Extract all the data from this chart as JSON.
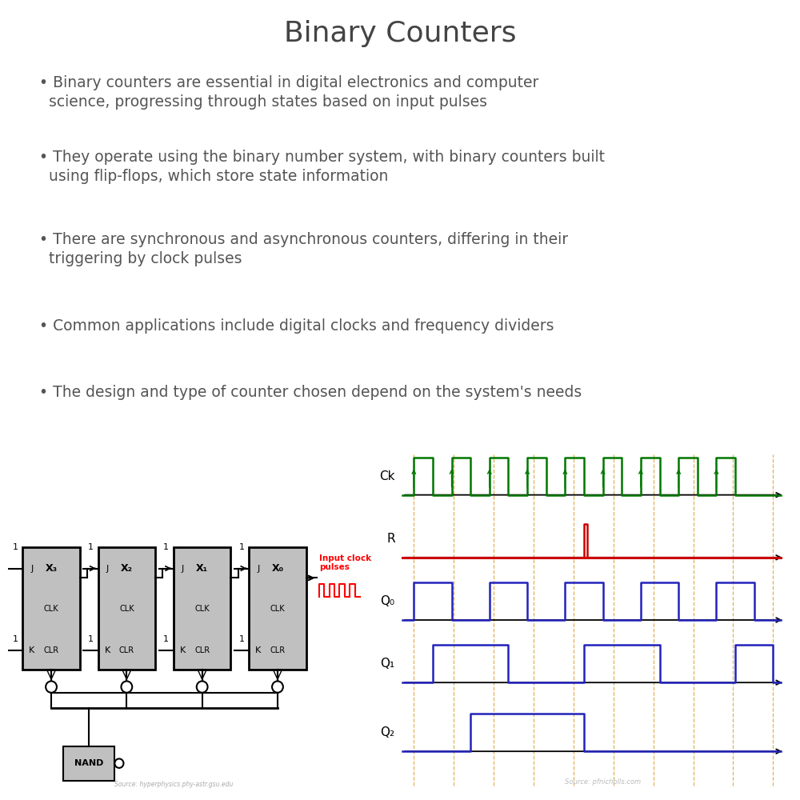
{
  "title": "Binary Counters",
  "title_fontsize": 26,
  "title_color": "#444444",
  "bg_color": "#ffffff",
  "box_bg": "#ffffff",
  "bullet_points": [
    "Binary counters are essential in digital electronics and computer\n  science, progressing through states based on input pulses",
    "They operate using the binary number system, with binary counters built\n  using flip-flops, which store state information",
    "There are synchronous and asynchronous counters, differing in their\n  triggering by clock pulses",
    "Common applications include digital clocks and frequency dividers",
    "The design and type of counter chosen depend on the system's needs"
  ],
  "bullet_fontsize": 13.5,
  "bullet_color": "#555555",
  "signal_labels": [
    "Ck",
    "R",
    "Q₀",
    "Q₁",
    "Q₂"
  ],
  "ck_color": "#007700",
  "r_color": "#cc0000",
  "q_color": "#2222bb",
  "dashed_color": "#ddaa44",
  "source_text": "Source: pfnicholls.com",
  "input_clock_text": "Input clock\npulses",
  "circuit_source": "Source: hyperphysics.phy-astr.gsu.edu"
}
